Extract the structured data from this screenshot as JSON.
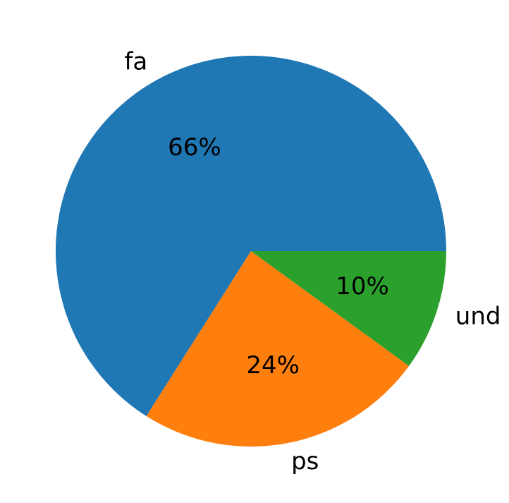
{
  "chart_data": {
    "type": "pie",
    "categories": [
      "fa",
      "ps",
      "und"
    ],
    "values": [
      66,
      24,
      10
    ],
    "value_labels": [
      "66%",
      "24%",
      "10%"
    ],
    "colors": [
      "#1f77b4",
      "#ff7f0e",
      "#2ca02c"
    ]
  }
}
